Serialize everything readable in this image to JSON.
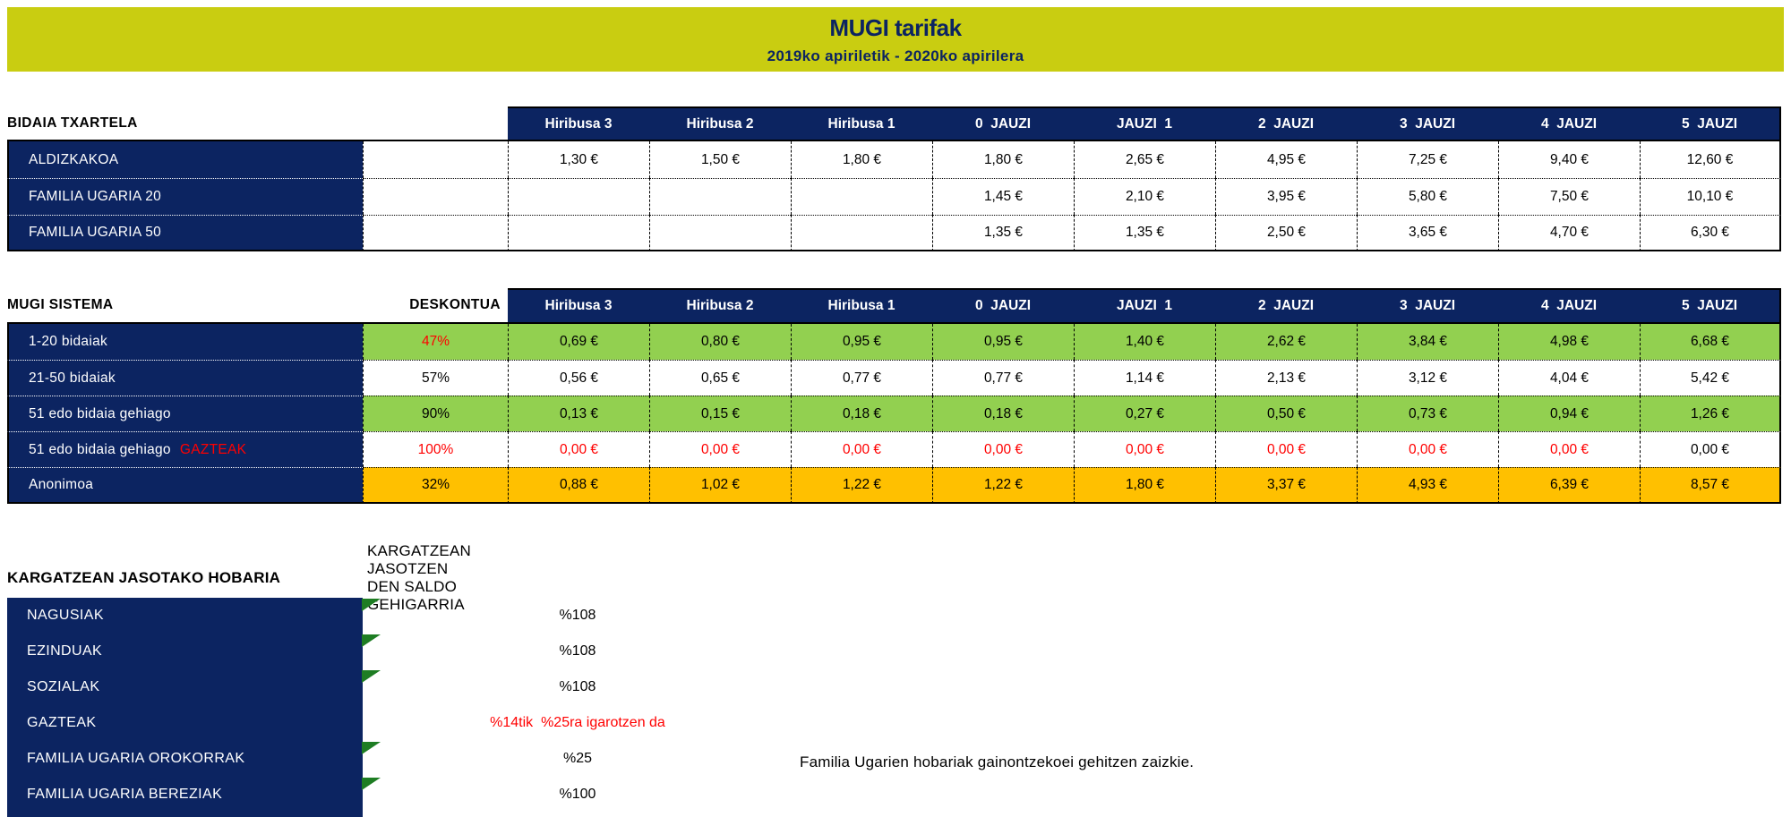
{
  "title_band": {
    "title": "MUGI tarifak",
    "subtitle": "2019ko apiriletik - 2020ko apirilera"
  },
  "columns": [
    "Hiribusa 3",
    "Hiribusa 2",
    "Hiribusa 1",
    "0  JAUZI",
    "JAUZI  1",
    "2  JAUZI",
    "3  JAUZI",
    "4  JAUZI",
    "5  JAUZI"
  ],
  "table1": {
    "title": "BIDAIA TXARTELA",
    "rows": [
      {
        "label": "ALDIZKAKOA",
        "values": [
          "1,30 €",
          "1,50 €",
          "1,80 €",
          "1,80 €",
          "2,65 €",
          "4,95 €",
          "7,25 €",
          "9,40 €",
          "12,60 €"
        ]
      },
      {
        "label": "FAMILIA UGARIA 20",
        "values": [
          "",
          "",
          "",
          "1,45 €",
          "2,10 €",
          "3,95 €",
          "5,80 €",
          "7,50 €",
          "10,10 €"
        ]
      },
      {
        "label": "FAMILIA UGARIA 50",
        "values": [
          "",
          "",
          "",
          "1,35 €",
          "1,35 €",
          "2,50 €",
          "3,65 €",
          "4,70 €",
          "6,30 €"
        ]
      }
    ]
  },
  "table2": {
    "title": "MUGI SISTEMA",
    "discount_header": "DESKONTUA",
    "rows": [
      {
        "label": "1-20 bidaiak",
        "discount": "47%",
        "discount_color": "red",
        "bg": "green",
        "values": [
          "0,69 €",
          "0,80 €",
          "0,95 €",
          "0,95 €",
          "1,40 €",
          "2,62 €",
          "3,84 €",
          "4,98 €",
          "6,68 €"
        ],
        "value_colors": [
          "black",
          "black",
          "black",
          "black",
          "black",
          "black",
          "black",
          "black",
          "black"
        ]
      },
      {
        "label": "21-50 bidaiak",
        "discount": "57%",
        "discount_color": "black",
        "bg": "white",
        "values": [
          "0,56 €",
          "0,65 €",
          "0,77 €",
          "0,77 €",
          "1,14 €",
          "2,13 €",
          "3,12 €",
          "4,04 €",
          "5,42 €"
        ],
        "value_colors": [
          "black",
          "black",
          "black",
          "black",
          "black",
          "black",
          "black",
          "black",
          "black"
        ]
      },
      {
        "label": "51 edo bidaia gehiago",
        "discount": "90%",
        "discount_color": "black",
        "bg": "green",
        "values": [
          "0,13 €",
          "0,15 €",
          "0,18 €",
          "0,18 €",
          "0,27 €",
          "0,50 €",
          "0,73 €",
          "0,94 €",
          "1,26 €"
        ],
        "value_colors": [
          "black",
          "black",
          "black",
          "black",
          "black",
          "black",
          "black",
          "black",
          "black"
        ]
      },
      {
        "label": "51 edo bidaia gehiago",
        "label_suffix": "GAZTEAK",
        "discount": "100%",
        "discount_color": "red",
        "bg": "white",
        "values": [
          "0,00 €",
          "0,00 €",
          "0,00 €",
          "0,00 €",
          "0,00 €",
          "0,00 €",
          "0,00 €",
          "0,00 €",
          "0,00 €"
        ],
        "value_colors": [
          "red",
          "red",
          "red",
          "red",
          "red",
          "red",
          "red",
          "red",
          "black"
        ]
      },
      {
        "label": "Anonimoa",
        "discount": "32%",
        "discount_color": "black",
        "bg": "orange",
        "values": [
          "0,88 €",
          "1,02 €",
          "1,22 €",
          "1,22 €",
          "1,80 €",
          "3,37 €",
          "4,93 €",
          "6,39 €",
          "8,57 €"
        ],
        "value_colors": [
          "black",
          "black",
          "black",
          "black",
          "black",
          "black",
          "black",
          "black",
          "black"
        ]
      }
    ]
  },
  "hobaria": {
    "title": "KARGATZEAN JASOTAKO HOBARIA",
    "subtitle": "KARGATZEAN JASOTZEN DEN SALDO GEHIGARRIA",
    "rows": [
      {
        "label": "NAGUSIAK",
        "value": "%108",
        "value_color": "black",
        "marker": true
      },
      {
        "label": "EZINDUAK",
        "value": "%108",
        "value_color": "black",
        "marker": true
      },
      {
        "label": "SOZIALAK",
        "value": "%108",
        "value_color": "black",
        "marker": true
      },
      {
        "label": "GAZTEAK",
        "value": "%14tik  %25ra igarotzen da",
        "value_color": "red",
        "marker": false
      },
      {
        "label": "FAMILIA UGARIA OROKORRAK",
        "value": "%25",
        "value_color": "black",
        "marker": true
      },
      {
        "label": "FAMILIA UGARIA BEREZIAK",
        "value": "%100",
        "value_color": "black",
        "marker": true
      }
    ],
    "note": "Familia Ugarien hobariak gainontzekoei gehitzen zaizkie."
  },
  "colors": {
    "band_yellow": "#c9cd11",
    "navy": "#0c2461",
    "row_green": "#92d050",
    "row_orange": "#ffc000",
    "red": "#ff0000",
    "marker_green": "#1e7d23"
  }
}
